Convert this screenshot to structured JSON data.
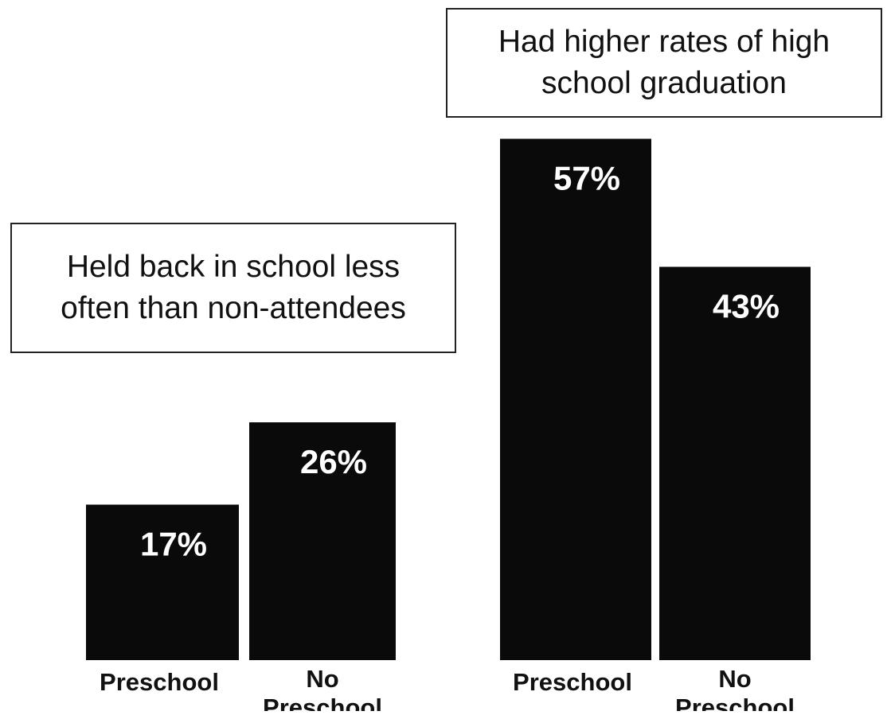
{
  "chart_data": [
    {
      "type": "bar",
      "title_lines": [
        "Held back in school less",
        "often than non-attendees"
      ],
      "categories": [
        [
          "Preschool"
        ],
        [
          "No",
          "Preschool"
        ]
      ],
      "values": [
        17,
        26
      ],
      "value_labels": [
        "17%",
        "26%"
      ],
      "unit": "%",
      "ylim": [
        0,
        60
      ],
      "grid": false,
      "legend": "none",
      "colors": {
        "bar": "#0a0a0a",
        "value_label": "#ffffff",
        "category_label": "#111111"
      }
    },
    {
      "type": "bar",
      "title_lines": [
        "Had higher rates of high",
        "school graduation"
      ],
      "categories": [
        [
          "Preschool"
        ],
        [
          "No",
          "Preschool"
        ]
      ],
      "values": [
        57,
        43
      ],
      "value_labels": [
        "57%",
        "43%"
      ],
      "unit": "%",
      "ylim": [
        0,
        60
      ],
      "grid": false,
      "legend": "none",
      "colors": {
        "bar": "#0a0a0a",
        "value_label": "#ffffff",
        "category_label": "#111111"
      }
    }
  ]
}
